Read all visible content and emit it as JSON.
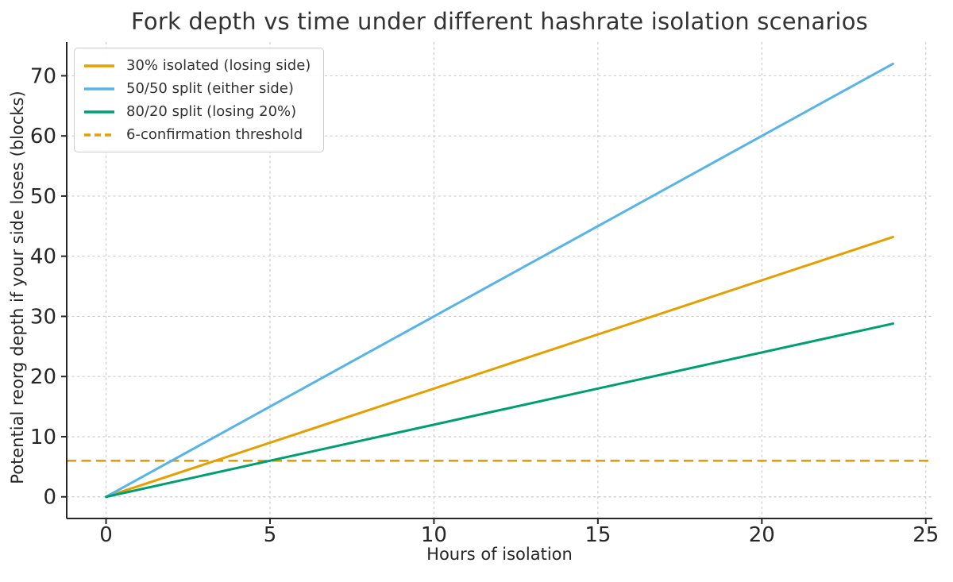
{
  "chart_data": {
    "type": "line",
    "title": "Fork depth vs time under different hashrate isolation scenarios",
    "xlabel": "Hours of isolation",
    "ylabel": "Potential reorg depth if your side loses (blocks)",
    "xlim": [
      -1.2,
      25.2
    ],
    "ylim": [
      -3.6,
      75.6
    ],
    "xticks": [
      0,
      5,
      10,
      15,
      20,
      25
    ],
    "yticks": [
      0,
      10,
      20,
      30,
      40,
      50,
      60,
      70
    ],
    "grid": true,
    "legend_position": "upper-left",
    "series": [
      {
        "name": "30% isolated (losing side)",
        "color": "#E69F00",
        "style": "solid",
        "x": [
          0,
          24
        ],
        "y": [
          0,
          43.2
        ]
      },
      {
        "name": "50/50 split (either side)",
        "color": "#56B4E9",
        "style": "solid",
        "x": [
          0,
          24
        ],
        "y": [
          0,
          72
        ]
      },
      {
        "name": "80/20 split (losing 20%)",
        "color": "#009E73",
        "style": "solid",
        "x": [
          0,
          24
        ],
        "y": [
          0,
          28.8
        ]
      }
    ],
    "threshold": {
      "name": "6-confirmation threshold",
      "color": "#E69F00",
      "style": "dashed",
      "y": 6
    },
    "colors": {
      "grid": "#cccccc",
      "spine": "#262626",
      "tick_text": "#262626",
      "title_text": "#333333"
    }
  }
}
